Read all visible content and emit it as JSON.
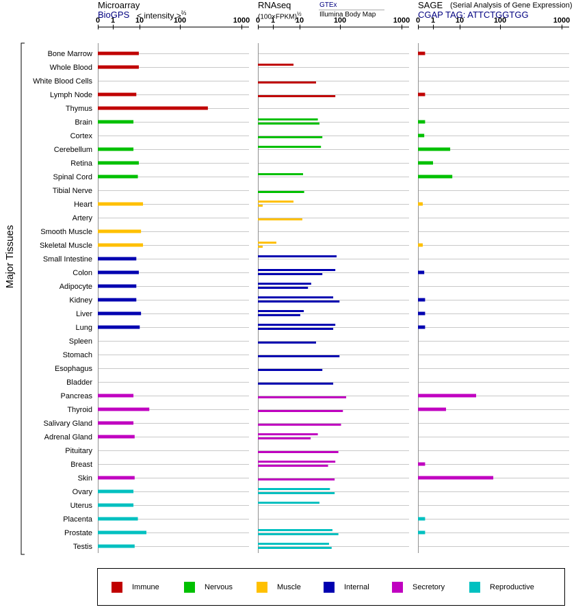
{
  "headers": {
    "microarray_title": "Microarray",
    "microarray_source": "BioGPS",
    "microarray_unit": "< intensity >",
    "microarray_exp": "⅔",
    "rnaseq_title": "RNAseq",
    "rnaseq_unit": "(100×FPKM)",
    "rnaseq_exp": "½",
    "rnaseq_series_1": "GTEx",
    "rnaseq_series_2": "Illumina Body Map",
    "sage_title": "SAGE",
    "sage_desc": "(Serial Analysis of Gene Expression)",
    "sage_tag": "CGAP TAG: ATTCTGGTGG"
  },
  "chart_data": {
    "type": "bar",
    "orientation": "horizontal",
    "y_axis_group_label": "Major Tissues",
    "tick_labels": [
      "0",
      "1",
      "10",
      "100",
      "1000"
    ],
    "x_scale": "square-root style (0–1000)",
    "categories": [
      "Bone Marrow",
      "Whole Blood",
      "White Blood Cells",
      "Lymph Node",
      "Thymus",
      "Brain",
      "Cortex",
      "Cerebellum",
      "Retina",
      "Spinal Cord",
      "Tibial Nerve",
      "Heart",
      "Artery",
      "Smooth Muscle",
      "Skeletal Muscle",
      "Small Intestine",
      "Colon",
      "Adipocyte",
      "Kidney",
      "Liver",
      "Lung",
      "Spleen",
      "Stomach",
      "Esophagus",
      "Bladder",
      "Pancreas",
      "Thyroid",
      "Salivary Gland",
      "Adrenal Gland",
      "Pituitary",
      "Breast",
      "Skin",
      "Ovary",
      "Uterus",
      "Placenta",
      "Prostate",
      "Testis"
    ],
    "groups": [
      "Immune",
      "Immune",
      "Immune",
      "Immune",
      "Immune",
      "Nervous",
      "Nervous",
      "Nervous",
      "Nervous",
      "Nervous",
      "Nervous",
      "Muscle",
      "Muscle",
      "Muscle",
      "Muscle",
      "Internal",
      "Internal",
      "Internal",
      "Internal",
      "Internal",
      "Internal",
      "Internal",
      "Internal",
      "Internal",
      "Internal",
      "Secretory",
      "Secretory",
      "Secretory",
      "Secretory",
      "Secretory",
      "Secretory",
      "Secretory",
      "Reproductive",
      "Reproductive",
      "Reproductive",
      "Reproductive",
      "Reproductive"
    ],
    "group_colors": {
      "Immune": "#c00000",
      "Nervous": "#00c000",
      "Muscle": "#ffc000",
      "Internal": "#0000b0",
      "Secretory": "#c000c0",
      "Reproductive": "#00c0c0"
    },
    "panels": [
      {
        "name": "Microarray",
        "series": [
          {
            "values": [
              4,
              4,
              null,
              3.5,
              160,
              3,
              null,
              3,
              4,
              3.8,
              null,
              5,
              null,
              4.5,
              5,
              3.5,
              4,
              3.5,
              3.5,
              4.5,
              4.2,
              null,
              null,
              null,
              null,
              3,
              7,
              3,
              3.2,
              null,
              null,
              3.2,
              3,
              3,
              3.8,
              6,
              3.2
            ]
          }
        ]
      },
      {
        "name": "RNAseq",
        "series": [
          {
            "name": "GTEx",
            "values": [
              null,
              3,
              null,
              null,
              null,
              11,
              null,
              13,
              null,
              5,
              null,
              3,
              null,
              null,
              1.2,
              30,
              28,
              7.7,
              25,
              5.2,
              28,
              null,
              null,
              null,
              null,
              null,
              null,
              null,
              11,
              null,
              28,
              null,
              21,
              12,
              null,
              24,
              20
            ]
          },
          {
            "name": "Illumina Body Map",
            "values": [
              null,
              null,
              10,
              28,
              null,
              12,
              14,
              null,
              null,
              null,
              5.3,
              0.01,
              4.8,
              null,
              0.01,
              null,
              14,
              6.5,
              35,
              4.3,
              25,
              10,
              35,
              14,
              25,
              50,
              42,
              38,
              7.5,
              33,
              19,
              27,
              27,
              null,
              null,
              33,
              23
            ]
          }
        ]
      },
      {
        "name": "SAGE",
        "series": [
          {
            "values": [
              0.05,
              null,
              null,
              0.05,
              null,
              0.05,
              0.03,
              2.5,
              1,
              2.8,
              null,
              0.01,
              null,
              null,
              0.01,
              null,
              0.03,
              null,
              0.05,
              0.05,
              0.05,
              null,
              null,
              null,
              null,
              10,
              2,
              null,
              null,
              null,
              0.05,
              25,
              null,
              null,
              0.05,
              0.05,
              null
            ]
          }
        ]
      }
    ],
    "legend": {
      "position": "bottom",
      "entries": [
        "Immune",
        "Nervous",
        "Muscle",
        "Internal",
        "Secretory",
        "Reproductive"
      ]
    }
  }
}
